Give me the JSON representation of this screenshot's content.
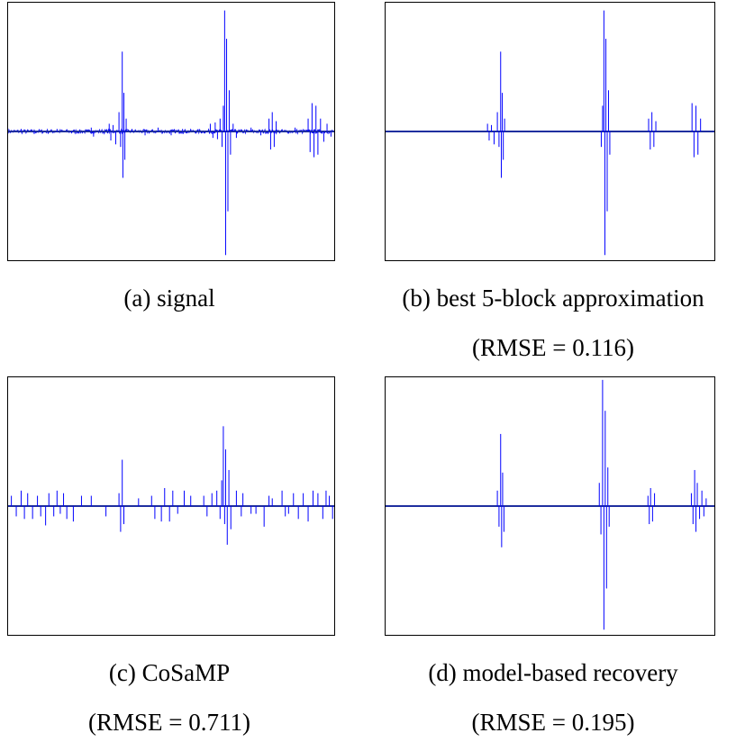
{
  "figure": {
    "panels": [
      {
        "id": "a",
        "caption": "(a) signal",
        "rmse_text": "",
        "chart_data": {
          "type": "line",
          "title": "",
          "xlabel": "",
          "ylabel": "",
          "grid": false,
          "legend": "none",
          "color": "#0000ff",
          "baseline_color": "#1f2f9f",
          "ylim": [
            -1.0,
            1.0
          ],
          "x_range": [
            0,
            1
          ],
          "noise_floor": 0.015,
          "spikes": [
            {
              "x": 0.04,
              "y": 0.02
            },
            {
              "x": 0.08,
              "y": -0.02
            },
            {
              "x": 0.15,
              "y": 0.02
            },
            {
              "x": 0.195,
              "y": -0.015
            },
            {
              "x": 0.255,
              "y": 0.03
            },
            {
              "x": 0.262,
              "y": -0.04
            },
            {
              "x": 0.31,
              "y": 0.06
            },
            {
              "x": 0.315,
              "y": -0.07
            },
            {
              "x": 0.322,
              "y": 0.05
            },
            {
              "x": 0.33,
              "y": -0.1
            },
            {
              "x": 0.34,
              "y": 0.15
            },
            {
              "x": 0.345,
              "y": -0.12
            },
            {
              "x": 0.35,
              "y": 0.62
            },
            {
              "x": 0.352,
              "y": -0.36
            },
            {
              "x": 0.355,
              "y": 0.3
            },
            {
              "x": 0.358,
              "y": -0.22
            },
            {
              "x": 0.362,
              "y": 0.1
            },
            {
              "x": 0.38,
              "y": 0.02
            },
            {
              "x": 0.42,
              "y": -0.03
            },
            {
              "x": 0.46,
              "y": 0.03
            },
            {
              "x": 0.5,
              "y": -0.03
            },
            {
              "x": 0.535,
              "y": 0.02
            },
            {
              "x": 0.62,
              "y": 0.06
            },
            {
              "x": 0.628,
              "y": -0.05
            },
            {
              "x": 0.635,
              "y": 0.07
            },
            {
              "x": 0.642,
              "y": -0.06
            },
            {
              "x": 0.65,
              "y": 0.1
            },
            {
              "x": 0.656,
              "y": -0.12
            },
            {
              "x": 0.66,
              "y": 0.2
            },
            {
              "x": 0.664,
              "y": 0.94
            },
            {
              "x": 0.667,
              "y": -0.96
            },
            {
              "x": 0.67,
              "y": 0.72
            },
            {
              "x": 0.674,
              "y": -0.62
            },
            {
              "x": 0.678,
              "y": 0.32
            },
            {
              "x": 0.682,
              "y": -0.18
            },
            {
              "x": 0.69,
              "y": 0.06
            },
            {
              "x": 0.7,
              "y": -0.05
            },
            {
              "x": 0.745,
              "y": 0.03
            },
            {
              "x": 0.775,
              "y": -0.03
            },
            {
              "x": 0.8,
              "y": 0.1
            },
            {
              "x": 0.805,
              "y": -0.14
            },
            {
              "x": 0.81,
              "y": 0.15
            },
            {
              "x": 0.816,
              "y": -0.12
            },
            {
              "x": 0.822,
              "y": 0.08
            },
            {
              "x": 0.88,
              "y": 0.03
            },
            {
              "x": 0.92,
              "y": 0.1
            },
            {
              "x": 0.926,
              "y": -0.16
            },
            {
              "x": 0.932,
              "y": 0.22
            },
            {
              "x": 0.938,
              "y": -0.2
            },
            {
              "x": 0.944,
              "y": 0.2
            },
            {
              "x": 0.95,
              "y": -0.18
            },
            {
              "x": 0.958,
              "y": 0.1
            },
            {
              "x": 0.968,
              "y": -0.08
            },
            {
              "x": 0.978,
              "y": 0.06
            },
            {
              "x": 0.99,
              "y": -0.04
            }
          ]
        }
      },
      {
        "id": "b",
        "caption": "(b) best 5-block approximation",
        "rmse_text": "(RMSE = 0.116)",
        "chart_data": {
          "type": "line",
          "title": "",
          "xlabel": "",
          "ylabel": "",
          "grid": false,
          "legend": "none",
          "color": "#0000ff",
          "baseline_color": "#1f2f9f",
          "ylim": [
            -1.0,
            1.0
          ],
          "x_range": [
            0,
            1
          ],
          "noise_floor": 0,
          "spikes": [
            {
              "x": 0.31,
              "y": 0.06
            },
            {
              "x": 0.315,
              "y": -0.07
            },
            {
              "x": 0.322,
              "y": 0.05
            },
            {
              "x": 0.33,
              "y": -0.1
            },
            {
              "x": 0.34,
              "y": 0.15
            },
            {
              "x": 0.345,
              "y": -0.12
            },
            {
              "x": 0.35,
              "y": 0.62
            },
            {
              "x": 0.352,
              "y": -0.36
            },
            {
              "x": 0.355,
              "y": 0.3
            },
            {
              "x": 0.358,
              "y": -0.22
            },
            {
              "x": 0.362,
              "y": 0.1
            },
            {
              "x": 0.656,
              "y": -0.12
            },
            {
              "x": 0.66,
              "y": 0.2
            },
            {
              "x": 0.664,
              "y": 0.94
            },
            {
              "x": 0.667,
              "y": -0.96
            },
            {
              "x": 0.67,
              "y": 0.72
            },
            {
              "x": 0.674,
              "y": -0.62
            },
            {
              "x": 0.678,
              "y": 0.32
            },
            {
              "x": 0.682,
              "y": -0.18
            },
            {
              "x": 0.8,
              "y": 0.1
            },
            {
              "x": 0.805,
              "y": -0.14
            },
            {
              "x": 0.81,
              "y": 0.15
            },
            {
              "x": 0.816,
              "y": -0.12
            },
            {
              "x": 0.822,
              "y": 0.08
            },
            {
              "x": 0.932,
              "y": 0.22
            },
            {
              "x": 0.938,
              "y": -0.2
            },
            {
              "x": 0.944,
              "y": 0.2
            },
            {
              "x": 0.95,
              "y": -0.18
            },
            {
              "x": 0.958,
              "y": 0.1
            }
          ]
        }
      },
      {
        "id": "c",
        "caption": "(c) CoSaMP",
        "rmse_text": "(RMSE = 0.711)",
        "chart_data": {
          "type": "line",
          "title": "",
          "xlabel": "",
          "ylabel": "",
          "grid": false,
          "legend": "none",
          "color": "#0000ff",
          "baseline_color": "#1f2f9f",
          "ylim": [
            -1.0,
            1.0
          ],
          "x_range": [
            0,
            1
          ],
          "noise_floor": 0,
          "spikes": [
            {
              "x": 0.01,
              "y": 0.08
            },
            {
              "x": 0.025,
              "y": -0.08
            },
            {
              "x": 0.04,
              "y": 0.12
            },
            {
              "x": 0.05,
              "y": -0.1
            },
            {
              "x": 0.06,
              "y": 0.1
            },
            {
              "x": 0.075,
              "y": -0.1
            },
            {
              "x": 0.09,
              "y": 0.08
            },
            {
              "x": 0.1,
              "y": -0.08
            },
            {
              "x": 0.115,
              "y": -0.15
            },
            {
              "x": 0.125,
              "y": 0.1
            },
            {
              "x": 0.14,
              "y": -0.08
            },
            {
              "x": 0.15,
              "y": 0.12
            },
            {
              "x": 0.16,
              "y": -0.06
            },
            {
              "x": 0.17,
              "y": 0.1
            },
            {
              "x": 0.18,
              "y": -0.1
            },
            {
              "x": 0.2,
              "y": -0.12
            },
            {
              "x": 0.225,
              "y": 0.08
            },
            {
              "x": 0.255,
              "y": 0.08
            },
            {
              "x": 0.3,
              "y": -0.08
            },
            {
              "x": 0.34,
              "y": 0.1
            },
            {
              "x": 0.345,
              "y": -0.2
            },
            {
              "x": 0.35,
              "y": 0.36
            },
            {
              "x": 0.355,
              "y": -0.14
            },
            {
              "x": 0.4,
              "y": 0.06
            },
            {
              "x": 0.44,
              "y": 0.08
            },
            {
              "x": 0.45,
              "y": -0.1
            },
            {
              "x": 0.47,
              "y": -0.12
            },
            {
              "x": 0.48,
              "y": 0.14
            },
            {
              "x": 0.495,
              "y": -0.12
            },
            {
              "x": 0.505,
              "y": 0.12
            },
            {
              "x": 0.52,
              "y": -0.06
            },
            {
              "x": 0.54,
              "y": 0.12
            },
            {
              "x": 0.56,
              "y": 0.08
            },
            {
              "x": 0.6,
              "y": 0.08
            },
            {
              "x": 0.61,
              "y": -0.08
            },
            {
              "x": 0.625,
              "y": 0.1
            },
            {
              "x": 0.64,
              "y": 0.12
            },
            {
              "x": 0.65,
              "y": -0.1
            },
            {
              "x": 0.655,
              "y": 0.2
            },
            {
              "x": 0.66,
              "y": 0.62
            },
            {
              "x": 0.664,
              "y": -0.14
            },
            {
              "x": 0.667,
              "y": 0.44
            },
            {
              "x": 0.672,
              "y": -0.3
            },
            {
              "x": 0.677,
              "y": 0.28
            },
            {
              "x": 0.683,
              "y": -0.18
            },
            {
              "x": 0.7,
              "y": 0.12
            },
            {
              "x": 0.715,
              "y": -0.08
            },
            {
              "x": 0.72,
              "y": 0.1
            },
            {
              "x": 0.745,
              "y": -0.06
            },
            {
              "x": 0.76,
              "y": -0.06
            },
            {
              "x": 0.785,
              "y": -0.16
            },
            {
              "x": 0.8,
              "y": 0.08
            },
            {
              "x": 0.81,
              "y": 0.06
            },
            {
              "x": 0.84,
              "y": 0.12
            },
            {
              "x": 0.85,
              "y": -0.08
            },
            {
              "x": 0.86,
              "y": -0.06
            },
            {
              "x": 0.875,
              "y": 0.1
            },
            {
              "x": 0.89,
              "y": -0.1
            },
            {
              "x": 0.905,
              "y": 0.1
            },
            {
              "x": 0.92,
              "y": -0.12
            },
            {
              "x": 0.935,
              "y": 0.12
            },
            {
              "x": 0.95,
              "y": 0.1
            },
            {
              "x": 0.965,
              "y": -0.1
            },
            {
              "x": 0.975,
              "y": 0.12
            },
            {
              "x": 0.985,
              "y": 0.08
            },
            {
              "x": 0.995,
              "y": -0.1
            }
          ]
        }
      },
      {
        "id": "d",
        "caption": "(d) model-based recovery",
        "rmse_text": "(RMSE = 0.195)",
        "chart_data": {
          "type": "line",
          "title": "",
          "xlabel": "",
          "ylabel": "",
          "grid": false,
          "legend": "none",
          "color": "#0000ff",
          "baseline_color": "#1f2f9f",
          "ylim": [
            -1.0,
            1.0
          ],
          "x_range": [
            0,
            1
          ],
          "noise_floor": 0,
          "spikes": [
            {
              "x": 0.34,
              "y": 0.12
            },
            {
              "x": 0.345,
              "y": -0.16
            },
            {
              "x": 0.35,
              "y": 0.56
            },
            {
              "x": 0.353,
              "y": -0.32
            },
            {
              "x": 0.356,
              "y": 0.26
            },
            {
              "x": 0.36,
              "y": -0.2
            },
            {
              "x": 0.65,
              "y": 0.18
            },
            {
              "x": 0.655,
              "y": -0.22
            },
            {
              "x": 0.66,
              "y": 0.98
            },
            {
              "x": 0.664,
              "y": -0.96
            },
            {
              "x": 0.668,
              "y": 0.74
            },
            {
              "x": 0.672,
              "y": -0.64
            },
            {
              "x": 0.676,
              "y": 0.3
            },
            {
              "x": 0.68,
              "y": -0.16
            },
            {
              "x": 0.798,
              "y": 0.08
            },
            {
              "x": 0.802,
              "y": -0.14
            },
            {
              "x": 0.806,
              "y": 0.14
            },
            {
              "x": 0.812,
              "y": -0.12
            },
            {
              "x": 0.818,
              "y": 0.1
            },
            {
              "x": 0.93,
              "y": 0.1
            },
            {
              "x": 0.935,
              "y": -0.14
            },
            {
              "x": 0.94,
              "y": 0.28
            },
            {
              "x": 0.944,
              "y": -0.2
            },
            {
              "x": 0.948,
              "y": 0.18
            },
            {
              "x": 0.955,
              "y": -0.1
            },
            {
              "x": 0.962,
              "y": 0.12
            },
            {
              "x": 0.968,
              "y": -0.08
            },
            {
              "x": 0.975,
              "y": 0.06
            }
          ]
        }
      }
    ]
  }
}
